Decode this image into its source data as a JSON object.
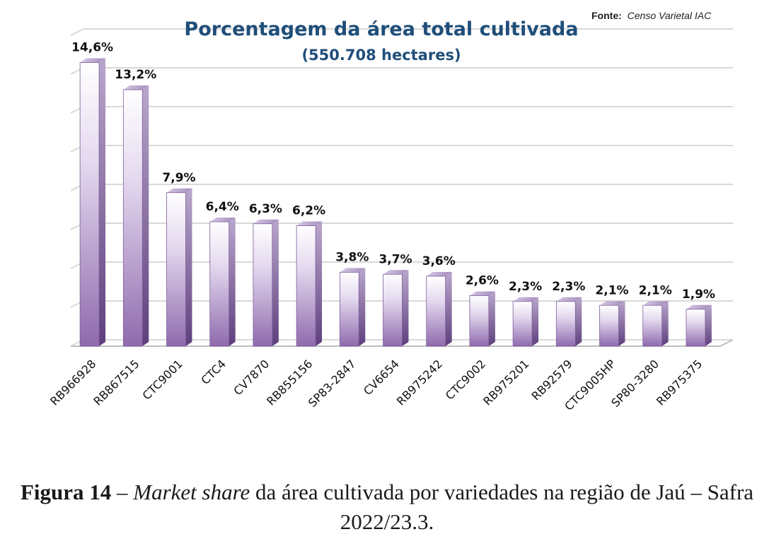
{
  "source": {
    "label": "Fonte:",
    "value": "Censo Varietal  IAC"
  },
  "chart_data": {
    "type": "bar",
    "title": "Porcentagem da área total cultivada",
    "subtitle": "(550.708 hectares)",
    "categories": [
      "RB966928",
      "RB867515",
      "CTC9001",
      "CTC4",
      "CV7870",
      "RB855156",
      "SP83-2847",
      "CV6654",
      "RB975242",
      "CTC9002",
      "RB975201",
      "RB92579",
      "CTC9005HP",
      "SP80-3280",
      "RB975375"
    ],
    "values": [
      14.6,
      13.2,
      7.9,
      6.4,
      6.3,
      6.2,
      3.8,
      3.7,
      3.6,
      2.6,
      2.3,
      2.3,
      2.1,
      2.1,
      1.9
    ],
    "data_labels": [
      "14,6%",
      "13,2%",
      "7,9%",
      "6,4%",
      "6,3%",
      "6,2%",
      "3,8%",
      "3,7%",
      "3,6%",
      "2,6%",
      "2,3%",
      "2,3%",
      "2,1%",
      "2,1%",
      "1,9%"
    ],
    "ylim": [
      0,
      16
    ],
    "grid": true,
    "bar_color": "#9b7fb6",
    "title_color": "#1f4e79"
  },
  "caption": {
    "label": "Figura 14",
    "dash": " – ",
    "italic": "Market share",
    "rest": " da área cultivada por variedades na região de Jaú – Safra 2022/23.3."
  }
}
